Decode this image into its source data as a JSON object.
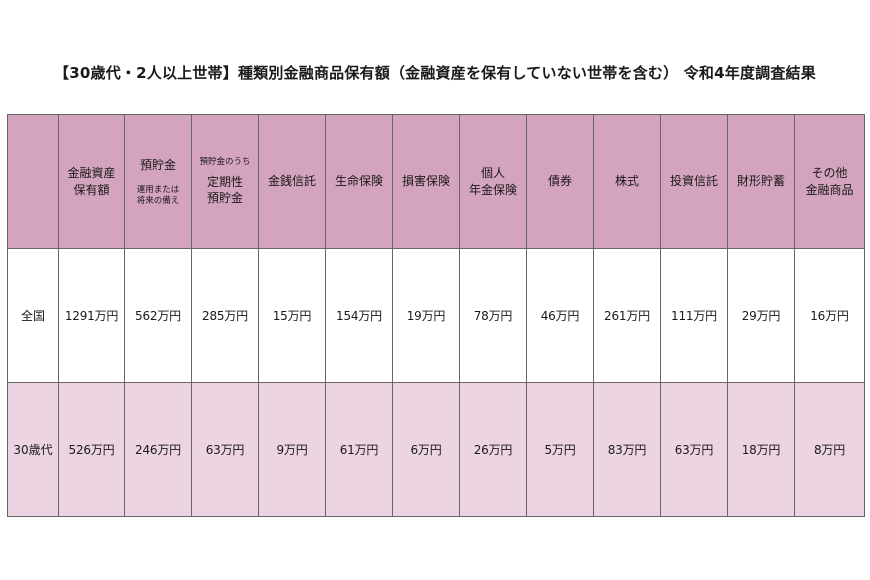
{
  "title": "【30歳代・2人以上世帯】種類別金融商品保有額（金融資産を保有していない世帯を含む） 令和4年度調査結果",
  "columns": [
    {
      "lines": [
        "金融資産",
        "保有額"
      ]
    },
    {
      "lines": [
        "預貯金"
      ],
      "note_lines": [
        "運用または",
        "将来の備え"
      ]
    },
    {
      "pre_note": "預貯金のうち",
      "lines": [
        "定期性",
        "預貯金"
      ]
    },
    {
      "lines": [
        "金銭信託"
      ]
    },
    {
      "lines": [
        "生命保険"
      ]
    },
    {
      "lines": [
        "損害保険"
      ]
    },
    {
      "lines": [
        "個人",
        "年金保険"
      ]
    },
    {
      "lines": [
        "債券"
      ]
    },
    {
      "lines": [
        "株式"
      ]
    },
    {
      "lines": [
        "投資信託"
      ]
    },
    {
      "lines": [
        "財形貯蓄"
      ]
    },
    {
      "lines": [
        "その他",
        "金融商品"
      ]
    }
  ],
  "rows": [
    {
      "label": "全国",
      "values": [
        "1291万円",
        "562万円",
        "285万円",
        "15万円",
        "154万円",
        "19万円",
        "78万円",
        "46万円",
        "261万円",
        "111万円",
        "29万円",
        "16万円"
      ]
    },
    {
      "label": "30歳代",
      "values": [
        "526万円",
        "246万円",
        "63万円",
        "9万円",
        "61万円",
        "6万円",
        "26万円",
        "5万円",
        "83万円",
        "63万円",
        "18万円",
        "8万円"
      ]
    }
  ],
  "colors": {
    "header_bg": "#d4a3be",
    "row_light_bg": "#ecd4e2",
    "row_white_bg": "#ffffff",
    "border": "#666666"
  }
}
